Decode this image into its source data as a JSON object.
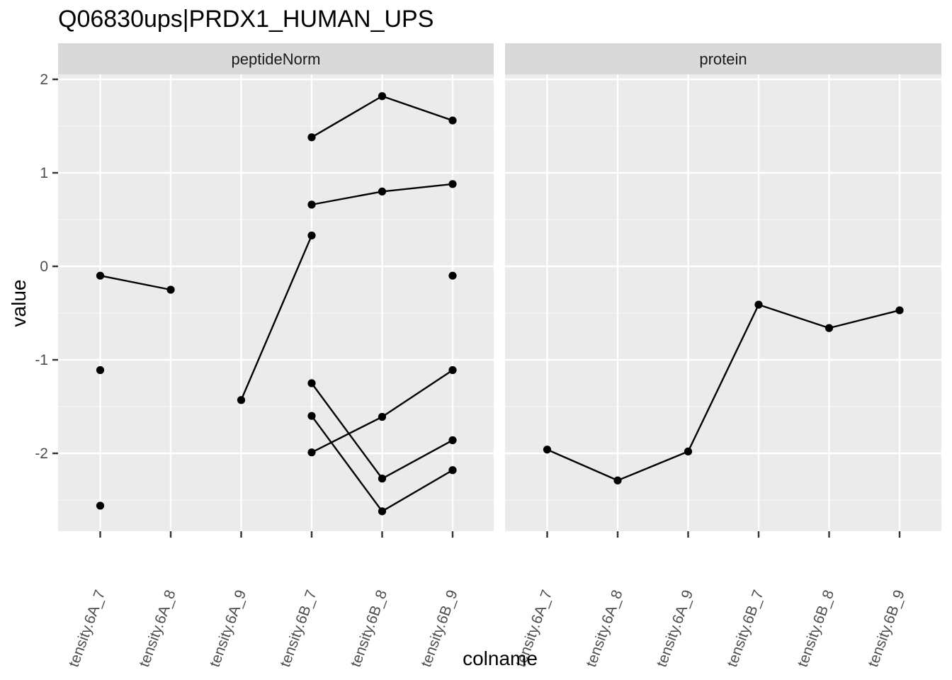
{
  "chart_data": {
    "type": "line",
    "title": "Q06830ups|PRDX1_HUMAN_UPS",
    "xlabel": "colname",
    "ylabel": "value",
    "ylim": [
      -2.8,
      2.05
    ],
    "yticks": [
      -2,
      -1,
      0,
      1,
      2
    ],
    "grid": true,
    "categories": [
      "tensity.6A_7",
      "tensity.6A_8",
      "tensity.6A_9",
      "tensity.6B_7",
      "tensity.6B_8",
      "tensity.6B_9"
    ],
    "panels": [
      {
        "label": "peptideNorm",
        "series": [
          {
            "values": [
              -0.1,
              -0.25,
              null,
              null,
              null,
              null
            ]
          },
          {
            "values": [
              -1.11,
              null,
              null,
              null,
              null,
              null
            ]
          },
          {
            "values": [
              -2.56,
              null,
              null,
              null,
              null,
              null
            ]
          },
          {
            "values": [
              null,
              null,
              -1.43,
              0.33,
              null,
              null
            ]
          },
          {
            "values": [
              null,
              null,
              null,
              1.38,
              1.82,
              1.56
            ]
          },
          {
            "values": [
              null,
              null,
              null,
              0.66,
              0.8,
              0.88
            ]
          },
          {
            "values": [
              null,
              null,
              null,
              -1.25,
              -2.27,
              -1.86
            ]
          },
          {
            "values": [
              null,
              null,
              null,
              -1.6,
              -2.62,
              -2.18
            ]
          },
          {
            "values": [
              null,
              null,
              null,
              -1.99,
              -1.61,
              -1.11
            ]
          },
          {
            "values": [
              null,
              null,
              null,
              null,
              null,
              -0.1
            ]
          }
        ]
      },
      {
        "label": "protein",
        "series": [
          {
            "values": [
              -1.96,
              -2.29,
              -1.98,
              -0.41,
              -0.66,
              -0.47
            ]
          }
        ]
      }
    ]
  }
}
